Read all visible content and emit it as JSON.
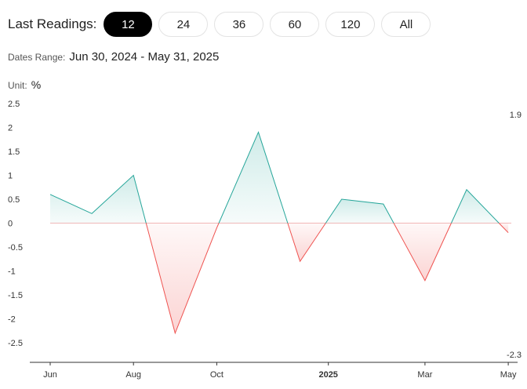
{
  "header": {
    "label": "Last Readings:",
    "options": [
      {
        "label": "12",
        "active": true
      },
      {
        "label": "24",
        "active": false
      },
      {
        "label": "36",
        "active": false
      },
      {
        "label": "60",
        "active": false
      },
      {
        "label": "120",
        "active": false
      },
      {
        "label": "All",
        "active": false
      }
    ]
  },
  "dates": {
    "label": "Dates Range:",
    "value": "Jun 30, 2024 - May 31, 2025"
  },
  "unit": {
    "label": "Unit:",
    "value": "%"
  },
  "chart_data": {
    "type": "area",
    "x": [
      "2024-06-30",
      "2024-07-31",
      "2024-08-31",
      "2024-09-30",
      "2024-10-31",
      "2024-11-30",
      "2024-12-31",
      "2025-01-31",
      "2025-02-28",
      "2025-03-31",
      "2025-04-30",
      "2025-05-31"
    ],
    "values": [
      0.6,
      0.2,
      1.0,
      -2.3,
      -0.1,
      1.9,
      -0.8,
      0.5,
      0.4,
      -1.2,
      0.7,
      -0.2
    ],
    "ylim": [
      -2.5,
      2.5
    ],
    "yticks": [
      "2.5",
      "2",
      "1.5",
      "1",
      "0.5",
      "0",
      "-0.5",
      "-1",
      "-1.5",
      "-2",
      "-2.5"
    ],
    "xticks": [
      "Jun",
      "Aug",
      "Oct",
      "2025",
      "Mar",
      "May"
    ],
    "max_label": "1.9",
    "min_label": "-2.3",
    "colors": {
      "positive": "#26a69a",
      "negative": "#ef5350",
      "zero_line": "#f2b8b8",
      "axis": "#333333"
    }
  }
}
